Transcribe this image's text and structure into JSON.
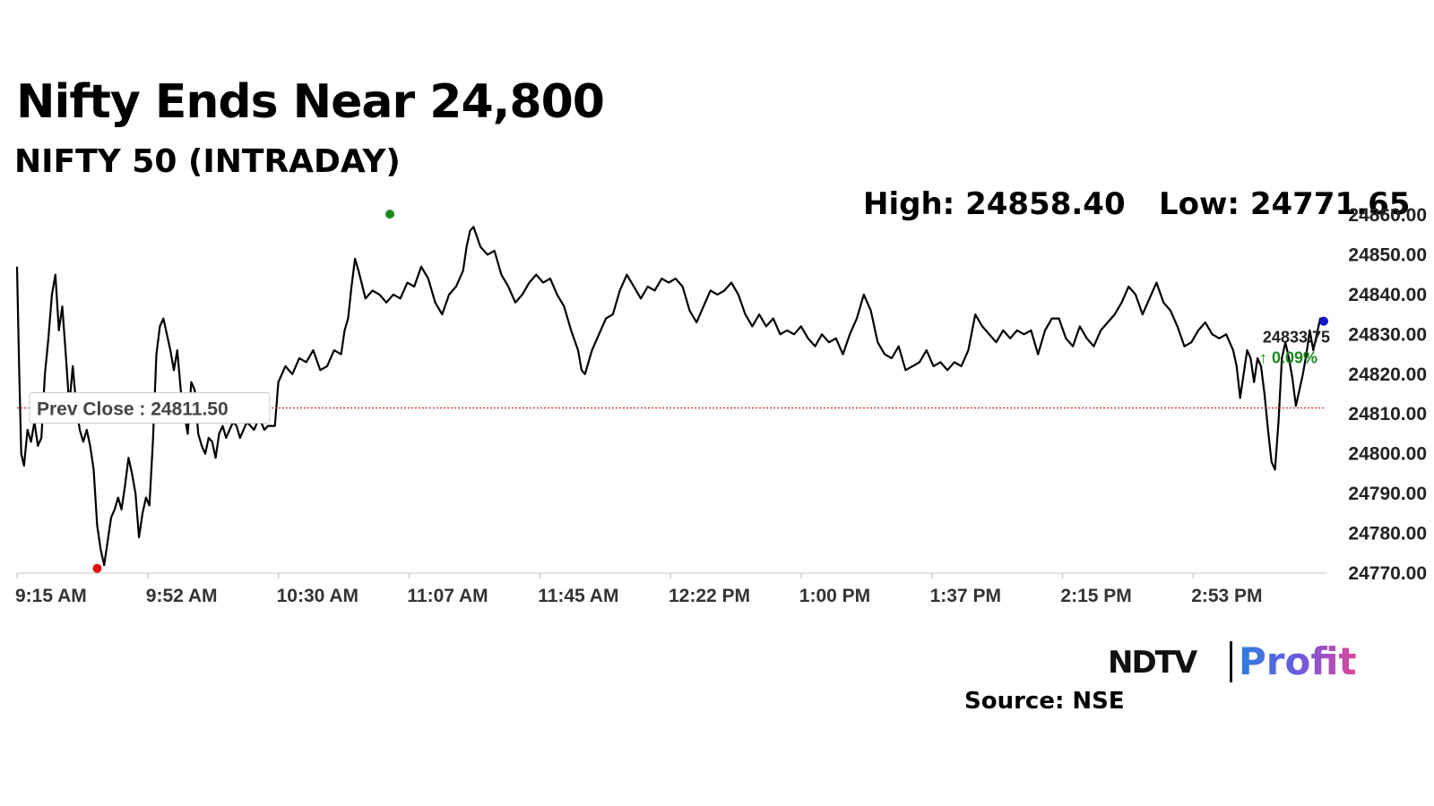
{
  "header": {
    "title": "Nifty Ends Near 24,800",
    "subtitle": "NIFTY 50 (INTRADAY)",
    "high_label": "High: 24858.40",
    "low_label": "Low: 24771.65"
  },
  "footer": {
    "logo_ndtv": "NDTV",
    "logo_profit": "Profit",
    "source": "Source: NSE"
  },
  "chart_data": {
    "type": "line",
    "title": "NIFTY 50 (INTRADAY)",
    "x_tick_labels": [
      "9:15 AM",
      "9:52 AM",
      "10:30 AM",
      "11:07 AM",
      "11:45 AM",
      "12:22 PM",
      "1:00 PM",
      "1:37 PM",
      "2:15 PM",
      "2:53 PM"
    ],
    "y_tick_labels": [
      "24860.00",
      "24850.00",
      "24840.00",
      "24830.00",
      "24820.00",
      "24810.00",
      "24800.00",
      "24790.00",
      "24780.00",
      "24770.00"
    ],
    "ylim": [
      24770,
      24860
    ],
    "xlim_minutes": [
      0,
      375
    ],
    "x_unit": "minutes after 9:15 AM",
    "prev_close": 24811.5,
    "prev_close_label": "Prev Close : 24811.50",
    "high": {
      "time": "11:02 AM",
      "value": 24858.4
    },
    "low": {
      "time": "9:38 AM",
      "value": 24771.65
    },
    "last": {
      "time": "3:30 PM",
      "value": 24833.75
    },
    "last_label": "24833.75",
    "change_label": "↑ 0.09%",
    "colors": {
      "line": "#000000",
      "prev_close": "#d11a1a",
      "high_marker": "#1a8a1a",
      "low_marker": "#e01010",
      "last_marker": "#1515c8",
      "change": "#1a8a1a"
    },
    "series": [
      {
        "points": [
          [
            0,
            24847
          ],
          [
            0.6,
            24822
          ],
          [
            1.2,
            24800
          ],
          [
            2,
            24797
          ],
          [
            3,
            24806
          ],
          [
            4,
            24803
          ],
          [
            5,
            24808
          ],
          [
            6,
            24802
          ],
          [
            7,
            24804
          ],
          [
            8,
            24820
          ],
          [
            9,
            24829
          ],
          [
            10,
            24840
          ],
          [
            11,
            24845
          ],
          [
            12,
            24831
          ],
          [
            13,
            24837
          ],
          [
            14,
            24825
          ],
          [
            15,
            24812
          ],
          [
            16,
            24822
          ],
          [
            17,
            24812
          ],
          [
            18,
            24806
          ],
          [
            19,
            24803
          ],
          [
            20,
            24806
          ],
          [
            21,
            24802
          ],
          [
            22,
            24796
          ],
          [
            23,
            24782
          ],
          [
            24,
            24776
          ],
          [
            25,
            24772
          ],
          [
            26,
            24778
          ],
          [
            27,
            24784
          ],
          [
            28,
            24786
          ],
          [
            29,
            24789
          ],
          [
            30,
            24786
          ],
          [
            31,
            24792
          ],
          [
            32,
            24799
          ],
          [
            33,
            24795
          ],
          [
            34,
            24790
          ],
          [
            35,
            24779
          ],
          [
            36,
            24785
          ],
          [
            37,
            24789
          ],
          [
            38,
            24787
          ],
          [
            39,
            24803
          ],
          [
            40,
            24825
          ],
          [
            41,
            24832
          ],
          [
            42,
            24834
          ],
          [
            43,
            24830
          ],
          [
            44,
            24826
          ],
          [
            45,
            24821
          ],
          [
            46,
            24826
          ],
          [
            47,
            24816
          ],
          [
            48,
            24810
          ],
          [
            49,
            24805
          ],
          [
            50,
            24818
          ],
          [
            51,
            24816
          ],
          [
            52,
            24805
          ],
          [
            53,
            24802
          ],
          [
            54,
            24800
          ],
          [
            55,
            24804
          ],
          [
            56,
            24803
          ],
          [
            57,
            24799
          ],
          [
            58,
            24805
          ],
          [
            59,
            24807
          ],
          [
            60,
            24804
          ],
          [
            61,
            24806
          ],
          [
            62,
            24808
          ],
          [
            63,
            24807
          ],
          [
            64,
            24804
          ],
          [
            65,
            24806
          ],
          [
            66,
            24808
          ],
          [
            67,
            24807
          ],
          [
            68,
            24806
          ],
          [
            69,
            24808
          ],
          [
            70,
            24808
          ],
          [
            71,
            24806
          ],
          [
            72,
            24807
          ],
          [
            73,
            24807
          ],
          [
            74,
            24807
          ],
          [
            75,
            24818
          ],
          [
            77,
            24822
          ],
          [
            79,
            24820
          ],
          [
            81,
            24824
          ],
          [
            83,
            24823
          ],
          [
            85,
            24826
          ],
          [
            87,
            24821
          ],
          [
            89,
            24822
          ],
          [
            91,
            24826
          ],
          [
            93,
            24825
          ],
          [
            94,
            24831
          ],
          [
            95,
            24834
          ],
          [
            96,
            24842
          ],
          [
            97,
            24849
          ],
          [
            98,
            24846
          ],
          [
            100,
            24839
          ],
          [
            102,
            24841
          ],
          [
            104,
            24840
          ],
          [
            106,
            24838
          ],
          [
            108,
            24840
          ],
          [
            110,
            24839
          ],
          [
            112,
            24843
          ],
          [
            114,
            24842
          ],
          [
            116,
            24847
          ],
          [
            118,
            24844
          ],
          [
            120,
            24838
          ],
          [
            122,
            24835
          ],
          [
            124,
            24840
          ],
          [
            126,
            24842
          ],
          [
            128,
            24846
          ],
          [
            129,
            24852
          ],
          [
            130,
            24856
          ],
          [
            131,
            24857
          ],
          [
            133,
            24852
          ],
          [
            135,
            24850
          ],
          [
            137,
            24851
          ],
          [
            139,
            24845
          ],
          [
            141,
            24842
          ],
          [
            143,
            24838
          ],
          [
            145,
            24840
          ],
          [
            147,
            24843
          ],
          [
            149,
            24845
          ],
          [
            151,
            24843
          ],
          [
            153,
            24844
          ],
          [
            155,
            24840
          ],
          [
            157,
            24837
          ],
          [
            159,
            24831
          ],
          [
            161,
            24826
          ],
          [
            162,
            24821
          ],
          [
            163,
            24820
          ],
          [
            165,
            24826
          ],
          [
            167,
            24830
          ],
          [
            169,
            24834
          ],
          [
            171,
            24835
          ],
          [
            173,
            24841
          ],
          [
            175,
            24845
          ],
          [
            177,
            24842
          ],
          [
            179,
            24839
          ],
          [
            181,
            24842
          ],
          [
            183,
            24841
          ],
          [
            185,
            24844
          ],
          [
            187,
            24843
          ],
          [
            189,
            24844
          ],
          [
            191,
            24842
          ],
          [
            193,
            24836
          ],
          [
            195,
            24833
          ],
          [
            197,
            24837
          ],
          [
            199,
            24841
          ],
          [
            201,
            24840
          ],
          [
            203,
            24841
          ],
          [
            205,
            24843
          ],
          [
            207,
            24840
          ],
          [
            209,
            24835
          ],
          [
            211,
            24832
          ],
          [
            213,
            24835
          ],
          [
            215,
            24832
          ],
          [
            217,
            24834
          ],
          [
            219,
            24830
          ],
          [
            221,
            24831
          ],
          [
            223,
            24830
          ],
          [
            225,
            24832
          ],
          [
            227,
            24829
          ],
          [
            229,
            24827
          ],
          [
            231,
            24830
          ],
          [
            233,
            24828
          ],
          [
            235,
            24829
          ],
          [
            237,
            24825
          ],
          [
            239,
            24830
          ],
          [
            241,
            24834
          ],
          [
            243,
            24840
          ],
          [
            245,
            24836
          ],
          [
            247,
            24828
          ],
          [
            249,
            24825
          ],
          [
            251,
            24824
          ],
          [
            253,
            24827
          ],
          [
            255,
            24821
          ],
          [
            257,
            24822
          ],
          [
            259,
            24823
          ],
          [
            261,
            24826
          ],
          [
            263,
            24822
          ],
          [
            265,
            24823
          ],
          [
            267,
            24821
          ],
          [
            269,
            24823
          ],
          [
            271,
            24822
          ],
          [
            273,
            24826
          ],
          [
            275,
            24835
          ],
          [
            277,
            24832
          ],
          [
            279,
            24830
          ],
          [
            281,
            24828
          ],
          [
            283,
            24831
          ],
          [
            285,
            24829
          ],
          [
            287,
            24831
          ],
          [
            289,
            24830
          ],
          [
            291,
            24831
          ],
          [
            293,
            24825
          ],
          [
            295,
            24831
          ],
          [
            297,
            24834
          ],
          [
            299,
            24834
          ],
          [
            301,
            24829
          ],
          [
            303,
            24827
          ],
          [
            305,
            24832
          ],
          [
            307,
            24829
          ],
          [
            309,
            24827
          ],
          [
            311,
            24831
          ],
          [
            313,
            24833
          ],
          [
            315,
            24835
          ],
          [
            317,
            24838
          ],
          [
            319,
            24842
          ],
          [
            321,
            24840
          ],
          [
            323,
            24835
          ],
          [
            325,
            24839
          ],
          [
            327,
            24843
          ],
          [
            329,
            24838
          ],
          [
            331,
            24836
          ],
          [
            333,
            24832
          ],
          [
            335,
            24827
          ],
          [
            337,
            24828
          ],
          [
            339,
            24831
          ],
          [
            341,
            24833
          ],
          [
            343,
            24830
          ],
          [
            345,
            24829
          ],
          [
            347,
            24830
          ],
          [
            349,
            24826
          ],
          [
            350,
            24822
          ],
          [
            351,
            24814
          ],
          [
            352,
            24820
          ],
          [
            353,
            24826
          ],
          [
            354,
            24824
          ],
          [
            355,
            24818
          ],
          [
            356,
            24824
          ],
          [
            357,
            24822
          ],
          [
            358,
            24815
          ],
          [
            359,
            24806
          ],
          [
            360,
            24798
          ],
          [
            361,
            24796
          ],
          [
            362,
            24808
          ],
          [
            363,
            24824
          ],
          [
            364,
            24828
          ],
          [
            365,
            24824
          ],
          [
            366,
            24819
          ],
          [
            367,
            24812
          ],
          [
            368,
            24816
          ],
          [
            369,
            24820
          ],
          [
            370,
            24825
          ],
          [
            371,
            24831
          ],
          [
            372,
            24826
          ],
          [
            373,
            24830
          ],
          [
            374,
            24834
          ],
          [
            375,
            24833.75
          ]
        ]
      }
    ]
  }
}
